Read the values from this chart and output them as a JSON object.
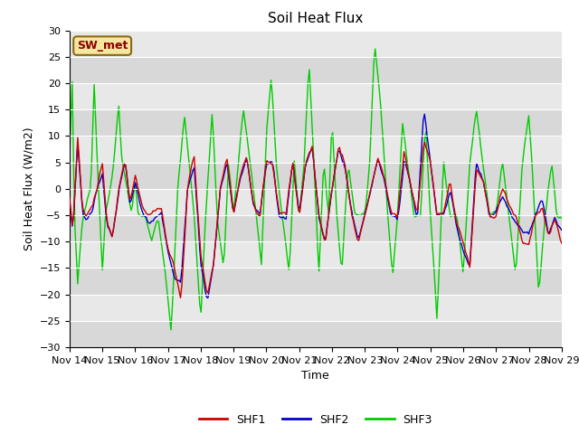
{
  "title": "Soil Heat Flux",
  "xlabel": "Time",
  "ylabel": "Soil Heat Flux (W/m2)",
  "ylim": [
    -30,
    30
  ],
  "yticks": [
    -30,
    -25,
    -20,
    -15,
    -10,
    -5,
    0,
    5,
    10,
    15,
    20,
    25,
    30
  ],
  "colors": {
    "SHF1": "#cc0000",
    "SHF2": "#0000cc",
    "SHF3": "#00cc00"
  },
  "annotation": "SW_met",
  "bg_color": "#e0e0e0",
  "fig_bg_color": "#ffffff",
  "xtick_labels": [
    "Nov 14",
    "Nov 15",
    "Nov 16",
    "Nov 17",
    "Nov 18",
    "Nov 19",
    "Nov 20",
    "Nov 21",
    "Nov 22",
    "Nov 23",
    "Nov 24",
    "Nov 25",
    "Nov 26",
    "Nov 27",
    "Nov 28",
    "Nov 29"
  ],
  "legend_labels": [
    "SHF1",
    "SHF2",
    "SHF3"
  ],
  "band_colors": [
    "#d8d8d8",
    "#e8e8e8"
  ]
}
